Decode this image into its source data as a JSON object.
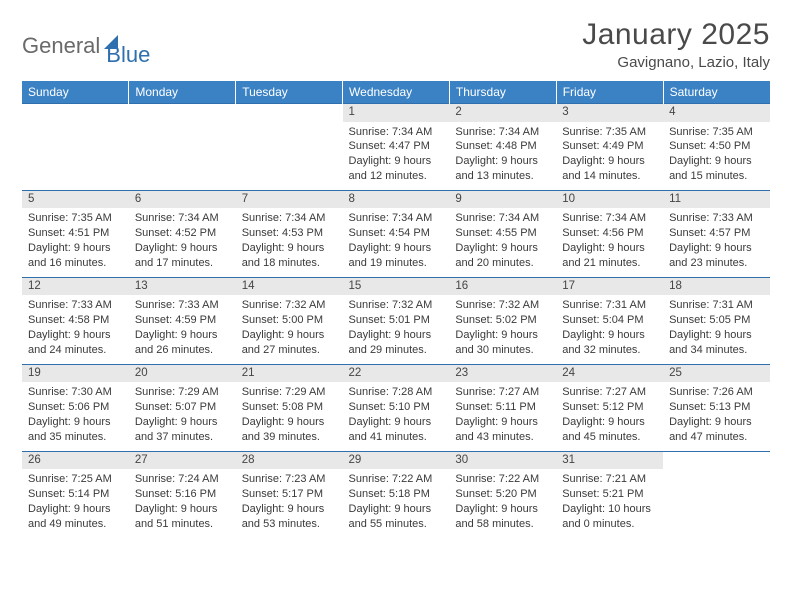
{
  "branding": {
    "logo_general": "General",
    "logo_blue": "Blue",
    "logo_color_gray": "#6a6a6a",
    "logo_color_blue": "#2f6fad"
  },
  "header": {
    "month_title": "January 2025",
    "location": "Gavignano, Lazio, Italy"
  },
  "style": {
    "header_bg": "#3b82c4",
    "header_text": "#ffffff",
    "daynum_bg": "#e8e8e8",
    "grid_border": "#2f6fad",
    "body_text": "#3a3a3a",
    "page_bg": "#ffffff",
    "font_size_header_day": 12,
    "font_size_daynum": 11.5,
    "font_size_details": 11,
    "font_size_title": 30,
    "font_size_location": 15
  },
  "day_headers": [
    "Sunday",
    "Monday",
    "Tuesday",
    "Wednesday",
    "Thursday",
    "Friday",
    "Saturday"
  ],
  "weeks": [
    [
      null,
      null,
      null,
      {
        "n": "1",
        "sunrise": "7:34 AM",
        "sunset": "4:47 PM",
        "day_h": 9,
        "day_m": 12
      },
      {
        "n": "2",
        "sunrise": "7:34 AM",
        "sunset": "4:48 PM",
        "day_h": 9,
        "day_m": 13
      },
      {
        "n": "3",
        "sunrise": "7:35 AM",
        "sunset": "4:49 PM",
        "day_h": 9,
        "day_m": 14
      },
      {
        "n": "4",
        "sunrise": "7:35 AM",
        "sunset": "4:50 PM",
        "day_h": 9,
        "day_m": 15
      }
    ],
    [
      {
        "n": "5",
        "sunrise": "7:35 AM",
        "sunset": "4:51 PM",
        "day_h": 9,
        "day_m": 16
      },
      {
        "n": "6",
        "sunrise": "7:34 AM",
        "sunset": "4:52 PM",
        "day_h": 9,
        "day_m": 17
      },
      {
        "n": "7",
        "sunrise": "7:34 AM",
        "sunset": "4:53 PM",
        "day_h": 9,
        "day_m": 18
      },
      {
        "n": "8",
        "sunrise": "7:34 AM",
        "sunset": "4:54 PM",
        "day_h": 9,
        "day_m": 19
      },
      {
        "n": "9",
        "sunrise": "7:34 AM",
        "sunset": "4:55 PM",
        "day_h": 9,
        "day_m": 20
      },
      {
        "n": "10",
        "sunrise": "7:34 AM",
        "sunset": "4:56 PM",
        "day_h": 9,
        "day_m": 21
      },
      {
        "n": "11",
        "sunrise": "7:33 AM",
        "sunset": "4:57 PM",
        "day_h": 9,
        "day_m": 23
      }
    ],
    [
      {
        "n": "12",
        "sunrise": "7:33 AM",
        "sunset": "4:58 PM",
        "day_h": 9,
        "day_m": 24
      },
      {
        "n": "13",
        "sunrise": "7:33 AM",
        "sunset": "4:59 PM",
        "day_h": 9,
        "day_m": 26
      },
      {
        "n": "14",
        "sunrise": "7:32 AM",
        "sunset": "5:00 PM",
        "day_h": 9,
        "day_m": 27
      },
      {
        "n": "15",
        "sunrise": "7:32 AM",
        "sunset": "5:01 PM",
        "day_h": 9,
        "day_m": 29
      },
      {
        "n": "16",
        "sunrise": "7:32 AM",
        "sunset": "5:02 PM",
        "day_h": 9,
        "day_m": 30
      },
      {
        "n": "17",
        "sunrise": "7:31 AM",
        "sunset": "5:04 PM",
        "day_h": 9,
        "day_m": 32
      },
      {
        "n": "18",
        "sunrise": "7:31 AM",
        "sunset": "5:05 PM",
        "day_h": 9,
        "day_m": 34
      }
    ],
    [
      {
        "n": "19",
        "sunrise": "7:30 AM",
        "sunset": "5:06 PM",
        "day_h": 9,
        "day_m": 35
      },
      {
        "n": "20",
        "sunrise": "7:29 AM",
        "sunset": "5:07 PM",
        "day_h": 9,
        "day_m": 37
      },
      {
        "n": "21",
        "sunrise": "7:29 AM",
        "sunset": "5:08 PM",
        "day_h": 9,
        "day_m": 39
      },
      {
        "n": "22",
        "sunrise": "7:28 AM",
        "sunset": "5:10 PM",
        "day_h": 9,
        "day_m": 41
      },
      {
        "n": "23",
        "sunrise": "7:27 AM",
        "sunset": "5:11 PM",
        "day_h": 9,
        "day_m": 43
      },
      {
        "n": "24",
        "sunrise": "7:27 AM",
        "sunset": "5:12 PM",
        "day_h": 9,
        "day_m": 45
      },
      {
        "n": "25",
        "sunrise": "7:26 AM",
        "sunset": "5:13 PM",
        "day_h": 9,
        "day_m": 47
      }
    ],
    [
      {
        "n": "26",
        "sunrise": "7:25 AM",
        "sunset": "5:14 PM",
        "day_h": 9,
        "day_m": 49
      },
      {
        "n": "27",
        "sunrise": "7:24 AM",
        "sunset": "5:16 PM",
        "day_h": 9,
        "day_m": 51
      },
      {
        "n": "28",
        "sunrise": "7:23 AM",
        "sunset": "5:17 PM",
        "day_h": 9,
        "day_m": 53
      },
      {
        "n": "29",
        "sunrise": "7:22 AM",
        "sunset": "5:18 PM",
        "day_h": 9,
        "day_m": 55
      },
      {
        "n": "30",
        "sunrise": "7:22 AM",
        "sunset": "5:20 PM",
        "day_h": 9,
        "day_m": 58
      },
      {
        "n": "31",
        "sunrise": "7:21 AM",
        "sunset": "5:21 PM",
        "day_h": 10,
        "day_m": 0
      },
      null
    ]
  ],
  "labels": {
    "sunrise": "Sunrise:",
    "sunset": "Sunset:",
    "daylight": "Daylight:",
    "hours": "hours",
    "and": "and",
    "minutes": "minutes."
  }
}
